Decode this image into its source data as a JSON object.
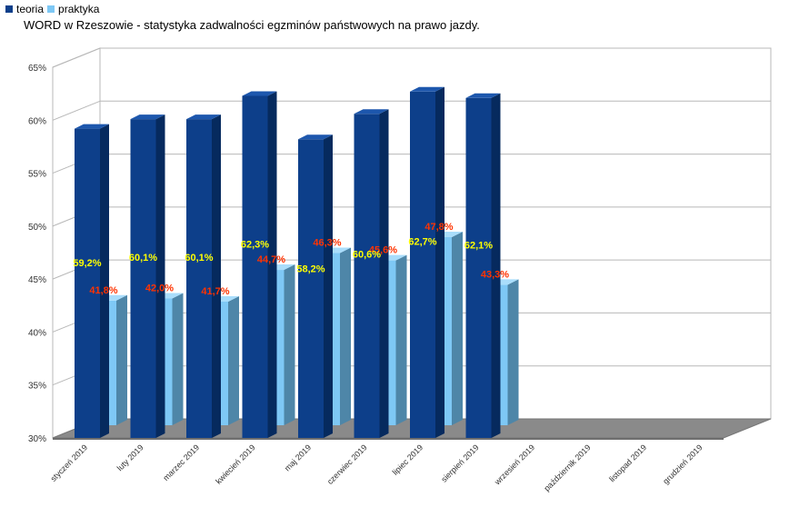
{
  "legend": {
    "items": [
      {
        "name": "teoria",
        "color": "#0d3f8a"
      },
      {
        "name": "praktyka",
        "color": "#7ec8f5"
      }
    ]
  },
  "chart_data": {
    "type": "bar",
    "title": "WORD w Rzeszowie - statystyka zadwalności egzminów państwowych na prawo jazdy.",
    "xlabel": "",
    "ylabel": "",
    "ylim": [
      30,
      65
    ],
    "yticks": [
      "30%",
      "35%",
      "40%",
      "45%",
      "50%",
      "55%",
      "60%",
      "65%"
    ],
    "grid": true,
    "legend_position": "top-left",
    "categories": [
      "styczeń 2019",
      "luty 2019",
      "marzec 2019",
      "kwiecień 2019",
      "maj 2019",
      "czerwiec 2019",
      "lipiec 2019",
      "sierpień 2019",
      "wrzesień 2019",
      "październik 2019",
      "listopad 2019",
      "grudzień 2019"
    ],
    "series": [
      {
        "name": "teoria",
        "color": "#0d3f8a",
        "label_color": "#ffff00",
        "values": [
          59.2,
          60.1,
          60.1,
          62.3,
          58.2,
          60.6,
          62.7,
          62.1,
          null,
          null,
          null,
          null
        ],
        "labels": [
          "59,2%",
          "60,1%",
          "60,1%",
          "62,3%",
          "58,2%",
          "60,6%",
          "62,7%",
          "62,1%",
          "",
          "",
          "",
          ""
        ]
      },
      {
        "name": "praktyka",
        "color": "#7ec8f5",
        "label_color": "#ff3300",
        "values": [
          41.8,
          42.0,
          41.7,
          44.7,
          46.3,
          45.6,
          47.8,
          43.3,
          null,
          null,
          null,
          null
        ],
        "labels": [
          "41,8%",
          "42,0%",
          "41,7%",
          "44,7%",
          "46,3%",
          "45,6%",
          "47,8%",
          "43,3%",
          "",
          "",
          "",
          ""
        ]
      }
    ]
  }
}
